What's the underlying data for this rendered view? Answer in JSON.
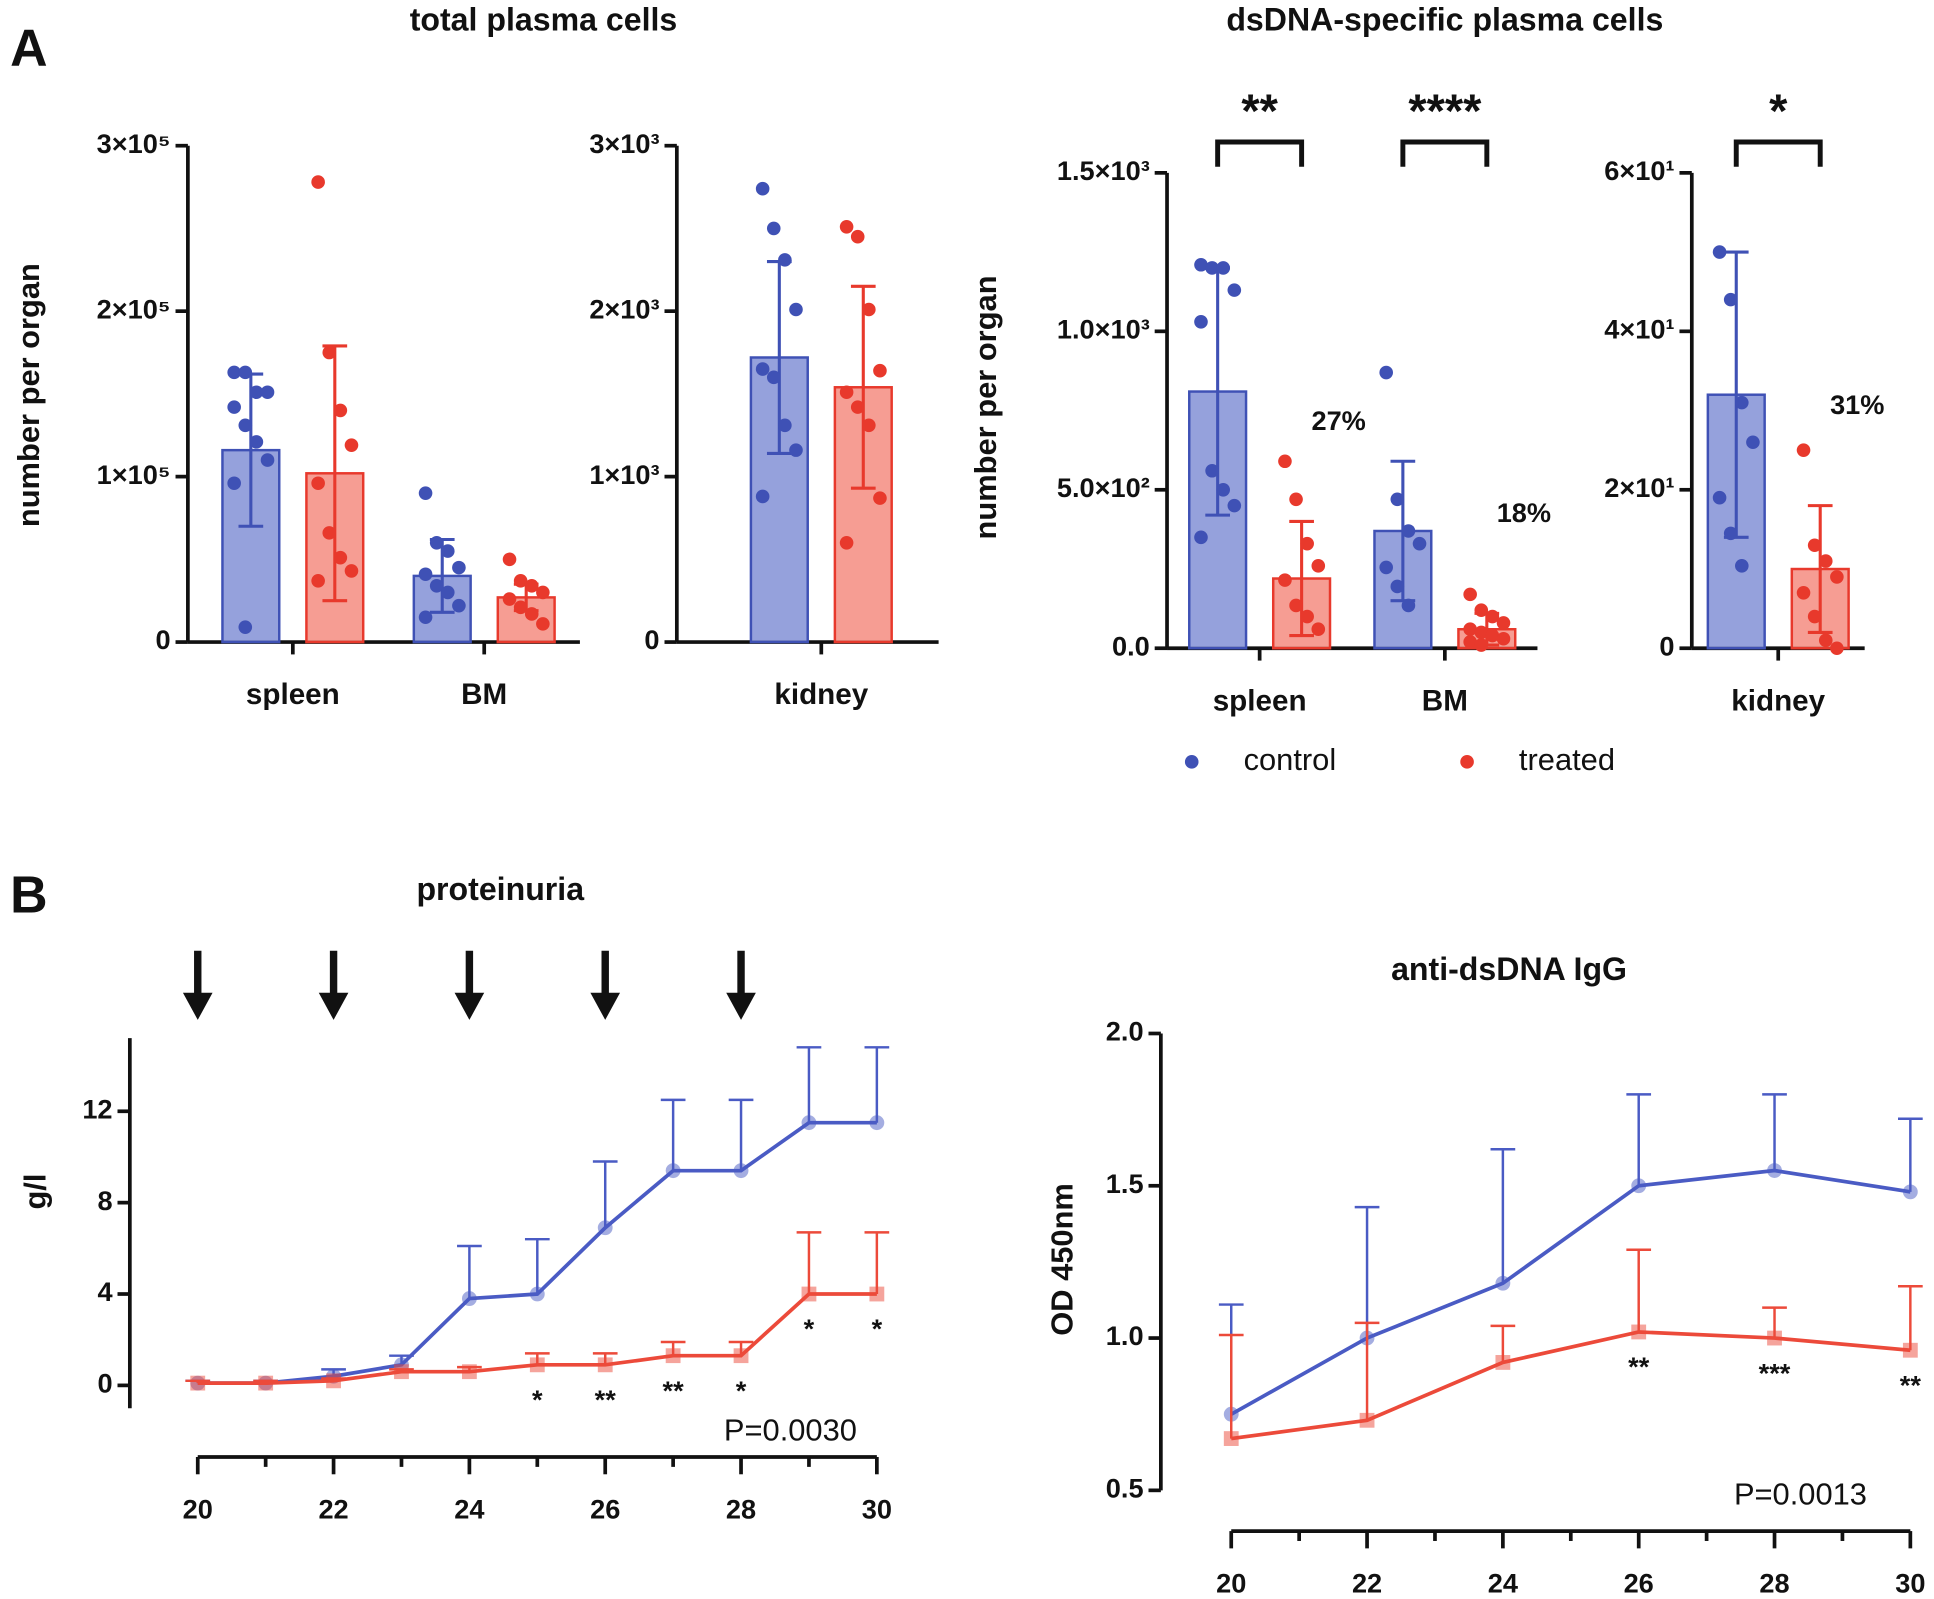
{
  "panels": [
    "A",
    "B"
  ],
  "chart_data": [
    {
      "type": "bar",
      "title": "total plasma cells",
      "ylabel": "number per organ",
      "categories": [
        "spleen",
        "BM"
      ],
      "ylim": [
        0,
        300000
      ],
      "yticks": [
        0,
        {
          "value": 100000,
          "label": "1×10⁵"
        },
        {
          "value": 200000,
          "label": "2×10⁵"
        },
        {
          "value": 300000,
          "label": "3×10⁵"
        }
      ],
      "series": [
        {
          "color": "#3f51b5",
          "fill": "#8391d6",
          "values": [
            116000,
            40000
          ],
          "errors": [
            46000,
            22000
          ],
          "points": [
            [
              163000,
              163000,
              151000,
              151000,
              142000,
              131000,
              121000,
              110000,
              96000,
              9000
            ],
            [
              90000,
              60000,
              55000,
              45000,
              41000,
              34000,
              30000,
              22000,
              15000
            ]
          ]
        },
        {
          "color": "#e8392c",
          "fill": "#f48c80",
          "values": [
            102000,
            27000
          ],
          "errors": [
            77000,
            8000
          ],
          "points": [
            [
              278000,
              175000,
              140000,
              119000,
              96000,
              66000,
              51000,
              43000,
              37000
            ],
            [
              50000,
              37000,
              34000,
              30000,
              26000,
              21000,
              17000,
              11000
            ]
          ]
        }
      ]
    },
    {
      "type": "bar",
      "categories": [
        "kidney"
      ],
      "ylim": [
        0,
        3000
      ],
      "yticks": [
        0,
        {
          "value": 1000,
          "label": "1×10³"
        },
        {
          "value": 2000,
          "label": "2×10³"
        },
        {
          "value": 3000,
          "label": "3×10³"
        }
      ],
      "series": [
        {
          "color": "#3f51b5",
          "fill": "#8391d6",
          "values": [
            1720
          ],
          "errors": [
            580
          ],
          "points": [
            [
              2740,
              2500,
              2310,
              2010,
              1650,
              1600,
              1310,
              1160,
              880
            ]
          ]
        },
        {
          "color": "#e8392c",
          "fill": "#f48c80",
          "values": [
            1540
          ],
          "errors": [
            610
          ],
          "points": [
            [
              2510,
              2450,
              2010,
              1640,
              1510,
              1420,
              1310,
              870,
              600
            ]
          ]
        }
      ]
    },
    {
      "type": "bar",
      "title": "dsDNA-specific plasma cells",
      "ylabel": "number per organ",
      "categories": [
        "spleen",
        "BM"
      ],
      "ylim": [
        0,
        1500
      ],
      "yticks": [
        {
          "value": 0,
          "label": "0.0"
        },
        {
          "value": 500,
          "label": "5.0×10²"
        },
        {
          "value": 1000,
          "label": "1.0×10³"
        },
        {
          "value": 1500,
          "label": "1.5×10³"
        }
      ],
      "significance": [
        "**",
        "****"
      ],
      "percent_labels": [
        "27%",
        "18%"
      ],
      "legend": "bottom",
      "series": [
        {
          "name": "control",
          "color": "#3f51b5",
          "fill": "#8391d6",
          "values": [
            810,
            370
          ],
          "errors": [
            390,
            220
          ],
          "points": [
            [
              1210,
              1200,
              1200,
              1130,
              1030,
              560,
              500,
              450,
              350
            ],
            [
              870,
              470,
              370,
              330,
              255,
              195,
              135
            ]
          ]
        },
        {
          "name": "treated",
          "color": "#e8392c",
          "fill": "#f48c80",
          "values": [
            220,
            60
          ],
          "errors": [
            180,
            50
          ],
          "points": [
            [
              590,
              470,
              330,
              260,
              215,
              135,
              100,
              60
            ],
            [
              170,
              120,
              100,
              80,
              60,
              50,
              40,
              30,
              20,
              10
            ]
          ]
        }
      ]
    },
    {
      "type": "bar",
      "categories": [
        "kidney"
      ],
      "ylim": [
        0,
        60
      ],
      "yticks": [
        0,
        {
          "value": 20,
          "label": "2×10¹"
        },
        {
          "value": 40,
          "label": "4×10¹"
        },
        {
          "value": 60,
          "label": "6×10¹"
        }
      ],
      "significance": [
        "*"
      ],
      "percent_labels": [
        "31%"
      ],
      "series": [
        {
          "color": "#3f51b5",
          "fill": "#8391d6",
          "values": [
            32
          ],
          "errors": [
            18
          ],
          "points": [
            [
              50,
              44,
              31,
              26,
              19,
              14.5,
              10.4
            ]
          ]
        },
        {
          "color": "#e8392c",
          "fill": "#f48c80",
          "values": [
            10
          ],
          "errors": [
            8
          ],
          "points": [
            [
              25,
              13,
              11,
              9,
              7,
              4,
              1,
              0
            ]
          ]
        }
      ]
    },
    {
      "type": "line",
      "title": "proteinuria",
      "ylabel": "g/l",
      "p_value": "P=0.0030",
      "x": [
        20,
        21,
        22,
        23,
        24,
        25,
        26,
        27,
        28,
        29,
        30
      ],
      "xlim": [
        20,
        30
      ],
      "xticks": [
        20,
        22,
        24,
        26,
        28,
        30
      ],
      "xminorticks": [
        21,
        23,
        25,
        27,
        29
      ],
      "ylim": [
        -1,
        15.2
      ],
      "yticks": [
        0,
        4,
        8,
        12
      ],
      "arrows": [
        20,
        22,
        24,
        26,
        28
      ],
      "significance": [
        null,
        null,
        null,
        null,
        null,
        "*",
        "**",
        "**",
        "*",
        "*",
        "*"
      ],
      "series": [
        {
          "color": "#4a5bc4",
          "values": [
            0.1,
            0.1,
            0.4,
            0.9,
            3.8,
            4.0,
            6.9,
            9.4,
            9.4,
            11.5,
            11.5
          ],
          "errors": [
            0.1,
            0.1,
            0.3,
            0.4,
            2.3,
            2.4,
            2.9,
            3.1,
            3.1,
            3.3,
            3.3
          ]
        },
        {
          "color": "#ec4a3a",
          "values": [
            0.1,
            0.1,
            0.2,
            0.6,
            0.6,
            0.9,
            0.9,
            1.3,
            1.3,
            4.0,
            4.0
          ],
          "errors": [
            0.1,
            0.1,
            0.1,
            0.1,
            0.2,
            0.5,
            0.5,
            0.6,
            0.6,
            2.7,
            2.7
          ]
        }
      ]
    },
    {
      "type": "line",
      "title": "anti-dsDNA IgG",
      "ylabel": "OD 450nm",
      "p_value": "P=0.0013",
      "x": [
        20,
        22,
        24,
        26,
        28,
        30
      ],
      "xlim": [
        20,
        30
      ],
      "xticks": [
        20,
        22,
        24,
        26,
        28,
        30
      ],
      "xminorticks": [
        21,
        23,
        25,
        27,
        29
      ],
      "ylim": [
        0.5,
        2.0
      ],
      "yticks": [
        0.5,
        {
          "value": 1,
          "label": "1.0"
        },
        1.5,
        {
          "value": 2,
          "label": "2.0"
        }
      ],
      "significance": [
        null,
        null,
        null,
        "**",
        "***",
        "**"
      ],
      "series": [
        {
          "color": "#4a5bc4",
          "values": [
            0.75,
            1.0,
            1.18,
            1.5,
            1.55,
            1.48
          ],
          "errors": [
            0.36,
            0.43,
            0.44,
            0.3,
            0.25,
            0.24
          ]
        },
        {
          "color": "#ec4a3a",
          "values": [
            0.67,
            0.73,
            0.92,
            1.02,
            1.0,
            0.96
          ],
          "errors": [
            0.34,
            0.32,
            0.12,
            0.27,
            0.1,
            0.21
          ]
        }
      ]
    }
  ]
}
